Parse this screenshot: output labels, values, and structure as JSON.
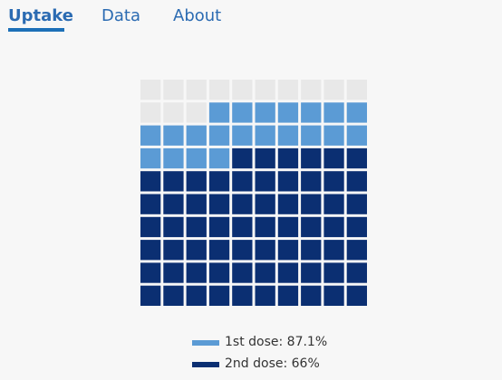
{
  "tabs": [
    {
      "label": "Uptake",
      "active": true
    },
    {
      "label": "Data",
      "active": false
    },
    {
      "label": "About",
      "active": false
    }
  ],
  "colors": {
    "accent": "#1d70b8",
    "empty": "#e8e8e8",
    "first_dose": "#5b9bd5",
    "second_dose": "#0b2f72"
  },
  "chart_data": {
    "type": "waffle",
    "grid_rows": 10,
    "grid_cols": 10,
    "series": [
      {
        "name": "1st dose",
        "value": 87.1,
        "unit": "%"
      },
      {
        "name": "2nd dose",
        "value": 66,
        "unit": "%"
      }
    ],
    "legend": [
      {
        "label": "1st dose: 87.1%",
        "color": "#5b9bd5"
      },
      {
        "label": "2nd dose: 66%",
        "color": "#0b2f72"
      }
    ],
    "legend_position": "bottom-center"
  }
}
